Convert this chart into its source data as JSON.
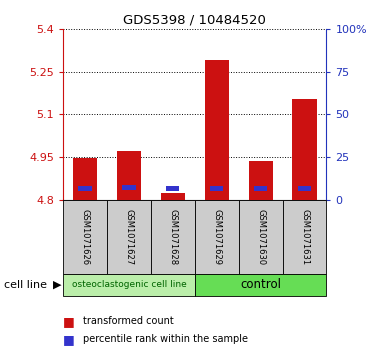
{
  "title": "GDS5398 / 10484520",
  "samples": [
    "GSM1071626",
    "GSM1071627",
    "GSM1071628",
    "GSM1071629",
    "GSM1071630",
    "GSM1071631"
  ],
  "red_tops": [
    4.945,
    4.97,
    4.825,
    5.29,
    4.935,
    5.155
  ],
  "blue_bottoms": [
    4.832,
    4.834,
    4.832,
    4.832,
    4.832,
    4.832
  ],
  "blue_tops": [
    4.848,
    4.85,
    4.848,
    4.848,
    4.848,
    4.848
  ],
  "bar_bottom": 4.8,
  "ylim": [
    4.8,
    5.4
  ],
  "yticks_left": [
    4.8,
    4.95,
    5.1,
    5.25,
    5.4
  ],
  "yticks_right_pct": [
    0,
    25,
    50,
    75,
    100
  ],
  "yticks_right_labels": [
    "0",
    "25",
    "50",
    "75",
    "100%"
  ],
  "group1_label": "osteoclastogenic cell line",
  "group2_label": "control",
  "group1_count": 3,
  "group2_count": 3,
  "cell_line_label": "cell line",
  "legend_red": "transformed count",
  "legend_blue": "percentile rank within the sample",
  "red_color": "#cc1111",
  "blue_color": "#3333cc",
  "group1_bg": "#bbeeaa",
  "group2_bg": "#66dd55",
  "sample_bg": "#cccccc",
  "left_axis_color": "#cc1111",
  "right_axis_color": "#2233bb"
}
